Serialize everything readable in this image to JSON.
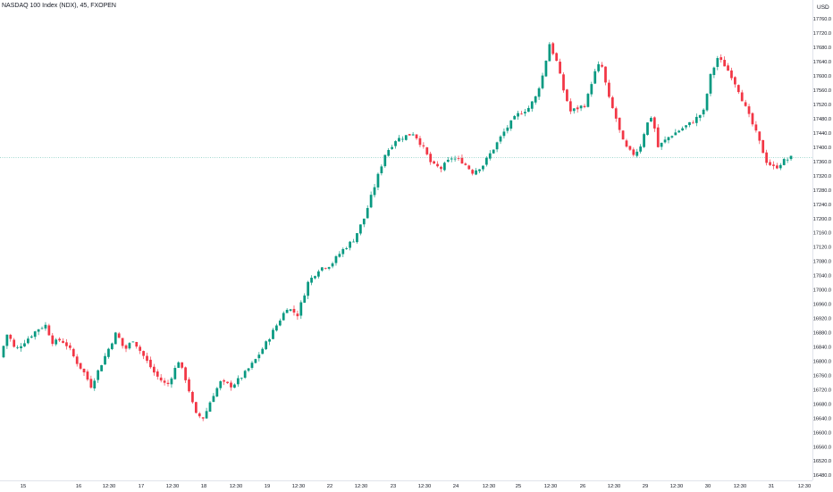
{
  "header": {
    "title": "NASDAQ 100 Index (NDX), 45, FXOPEN",
    "currency": "USD"
  },
  "colors": {
    "up": "#089981",
    "down": "#f23645",
    "axis_text": "#131722",
    "price_line": "#089981"
  },
  "chart_data": {
    "type": "candlestick",
    "y_ticks": [
      "17760.0",
      "17720.0",
      "17680.0",
      "17640.0",
      "17600.0",
      "17560.0",
      "17520.0",
      "17480.0",
      "17440.0",
      "17400.0",
      "17360.0",
      "17320.0",
      "17280.0",
      "17240.0",
      "17200.0",
      "17160.0",
      "17120.0",
      "17080.0",
      "17040.0",
      "17000.0",
      "16960.0",
      "16920.0",
      "16880.0",
      "16840.0",
      "16800.0",
      "16760.0",
      "16720.0",
      "16680.0",
      "16640.0",
      "16600.0",
      "16560.0",
      "16520.0",
      "16480.0"
    ],
    "ylim": [
      16480,
      17760
    ],
    "x_ticks": [
      "15",
      "16",
      "12:30",
      "17",
      "12:30",
      "18",
      "12:30",
      "19",
      "12:30",
      "22",
      "12:30",
      "23",
      "12:30",
      "24",
      "12:30",
      "25",
      "12:30",
      "26",
      "12:30",
      "29",
      "12:30",
      "30",
      "12:30",
      "31",
      "12:30"
    ],
    "last_price": 17370,
    "segments": [
      {
        "n": 13,
        "points": [
          16810,
          16880,
          16830,
          16850,
          16870,
          16890,
          16900
        ]
      },
      {
        "n": 13,
        "points": [
          16900,
          16850,
          16860,
          16840,
          16800,
          16770,
          16730
        ]
      },
      {
        "n": 12,
        "points": [
          16730,
          16780,
          16830,
          16880,
          16830,
          16860
        ]
      },
      {
        "n": 13,
        "points": [
          16860,
          16810,
          16760,
          16730,
          16800
        ]
      },
      {
        "n": 12,
        "points": [
          16800,
          16740,
          16650,
          16640,
          16700,
          16740
        ]
      },
      {
        "n": 13,
        "points": [
          16740,
          16730,
          16760,
          16800,
          16850
        ]
      },
      {
        "n": 12,
        "points": [
          16850,
          16900,
          16950,
          16930,
          17020
        ]
      },
      {
        "n": 13,
        "points": [
          17020,
          17060,
          17070,
          17110,
          17140
        ]
      },
      {
        "n": 12,
        "points": [
          17140,
          17200,
          17290,
          17380,
          17420
        ]
      },
      {
        "n": 13,
        "points": [
          17420,
          17430,
          17440,
          17400,
          17350,
          17340
        ]
      },
      {
        "n": 12,
        "points": [
          17340,
          17370,
          17360,
          17330,
          17350
        ]
      },
      {
        "n": 13,
        "points": [
          17350,
          17400,
          17450,
          17490,
          17510
        ]
      },
      {
        "n": 12,
        "points": [
          17510,
          17540,
          17600,
          17690,
          17640,
          17560,
          17500
        ]
      },
      {
        "n": 13,
        "points": [
          17500,
          17510,
          17520,
          17600,
          17640,
          17540,
          17480
        ]
      },
      {
        "n": 12,
        "points": [
          17480,
          17420,
          17390,
          17380,
          17400,
          17460,
          17490,
          17400
        ]
      },
      {
        "n": 13,
        "points": [
          17400,
          17430,
          17450,
          17470,
          17500
        ]
      },
      {
        "n": 12,
        "points": [
          17500,
          17600,
          17650,
          17630,
          17600,
          17560,
          17510
        ]
      },
      {
        "n": 6,
        "points": [
          17510,
          17440,
          17360
        ]
      },
      {
        "n": 7,
        "points": [
          17360,
          17340,
          17360,
          17370
        ]
      }
    ]
  }
}
